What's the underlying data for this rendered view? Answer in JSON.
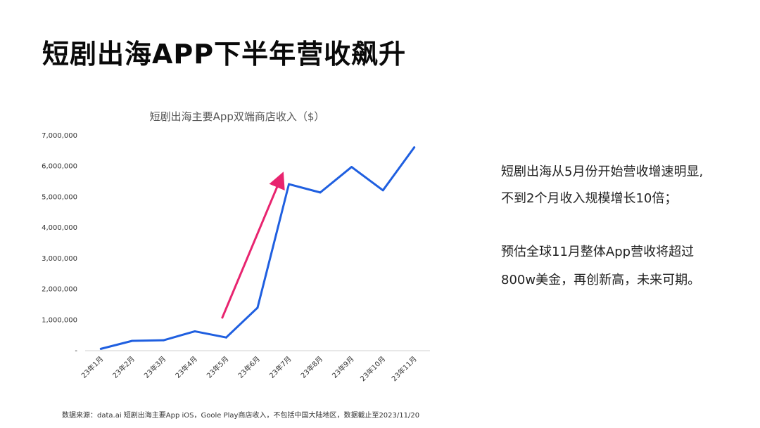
{
  "slide": {
    "title": "短剧出海APP下半年营收飙升"
  },
  "chart_data": {
    "type": "line",
    "title": "短剧出海主要App双端商店收入（$）",
    "categories": [
      "23年1月",
      "23年2月",
      "23年3月",
      "23年4月",
      "23年5月",
      "23年6月",
      "23年7月",
      "23年8月",
      "23年9月",
      "23年10月",
      "23年11月"
    ],
    "series": [
      {
        "values": [
          60000,
          320000,
          340000,
          630000,
          430000,
          1400000,
          5420000,
          5150000,
          5980000,
          5220000,
          6620000
        ],
        "color": "#1f5fe0"
      }
    ],
    "yticks": [
      "-",
      "1,000,000",
      "2,000,000",
      "3,000,000",
      "4,000,000",
      "5,000,000",
      "6,000,000",
      "7,000,000"
    ],
    "ylim": [
      0,
      7000000
    ],
    "grid": false,
    "annotation": {
      "type": "arrow",
      "color": "#e8246f",
      "from": {
        "x": "23年5月",
        "y": 1050000
      },
      "to": {
        "x": "23年7月",
        "y": 5700000
      }
    }
  },
  "notes": {
    "line1": "短剧出海从5月份开始营收增速明显,",
    "line2": "不到2个月收入规模增长10倍；",
    "line3": "预估全球11月整体App营收将超过",
    "line4": "800w美金，再创新高，未来可期。"
  },
  "source": "数据来源：data.ai 短剧出海主要App iOS，Goole Play商店收入，不包括中国大陆地区，数据截止至2023/11/20"
}
